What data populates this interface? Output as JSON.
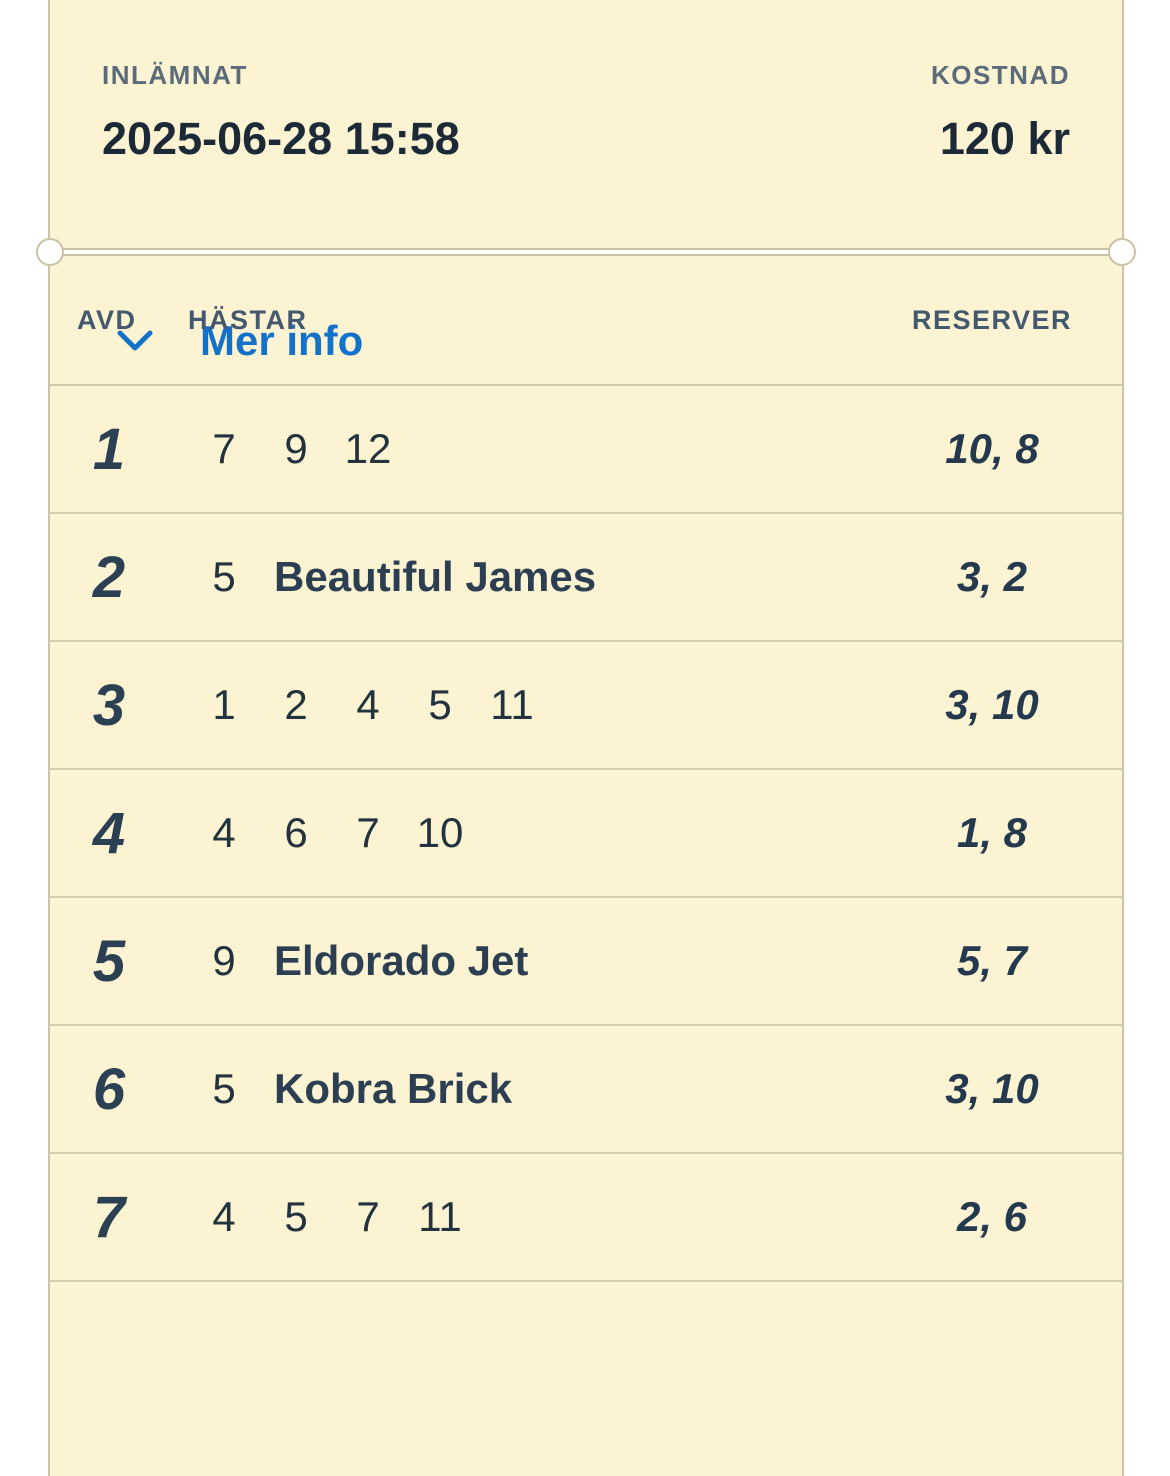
{
  "receipt": {
    "submitted_label": "INLÄMNAT",
    "submitted_value": "2025-06-28 15:58",
    "cost_label": "KOSTNAD",
    "cost_value": "120 kr"
  },
  "table": {
    "headers": {
      "avd": "AVD",
      "hastar": "HÄSTAR",
      "reserver": "RESERVER"
    },
    "rows": [
      {
        "avd": "1",
        "horses": [
          "7",
          "9",
          "12"
        ],
        "name": "",
        "reserves": "10, 8"
      },
      {
        "avd": "2",
        "horses": [
          "5"
        ],
        "name": "Beautiful James",
        "reserves": "3, 2"
      },
      {
        "avd": "3",
        "horses": [
          "1",
          "2",
          "4",
          "5",
          "11"
        ],
        "name": "",
        "reserves": "3, 10"
      },
      {
        "avd": "4",
        "horses": [
          "4",
          "6",
          "7",
          "10"
        ],
        "name": "",
        "reserves": "1, 8"
      },
      {
        "avd": "5",
        "horses": [
          "9"
        ],
        "name": "Eldorado Jet",
        "reserves": "5, 7"
      },
      {
        "avd": "6",
        "horses": [
          "5"
        ],
        "name": "Kobra Brick",
        "reserves": "3, 10"
      },
      {
        "avd": "7",
        "horses": [
          "4",
          "5",
          "7",
          "11"
        ],
        "name": "",
        "reserves": "2, 6"
      }
    ]
  },
  "footer": {
    "more_info_label": "Mer info",
    "chevron_icon": "chevron-down"
  },
  "colors": {
    "card_background": "#fbf3d1",
    "card_border": "#c9c3a9",
    "link_blue": "#1271c9",
    "text_dark": "#1c2a38",
    "label_slate": "#5c6b7a"
  }
}
